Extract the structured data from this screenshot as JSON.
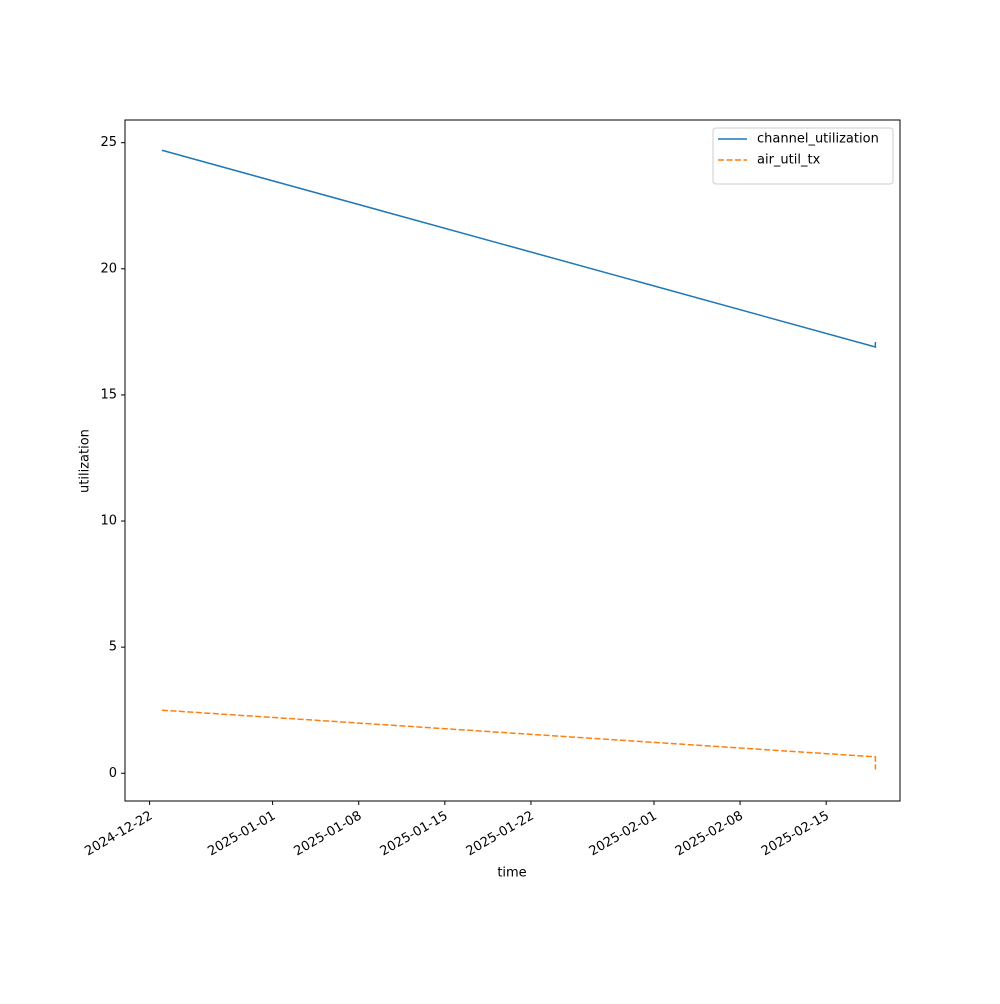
{
  "chart_data": {
    "type": "line",
    "x": [
      "2024-12-23",
      "2025-02-19",
      "2025-02-19"
    ],
    "series": [
      {
        "name": "channel_utilization",
        "color": "#1f77b4",
        "dash": "solid",
        "values": [
          24.7,
          16.9,
          17.1
        ]
      },
      {
        "name": "air_util_tx",
        "color": "#ff7f0e",
        "dash": "dashed",
        "values": [
          2.5,
          0.65,
          0.15
        ]
      }
    ],
    "x_label": "time",
    "y_label": "utilization",
    "xlim": [
      "2024-12-20",
      "2025-02-21"
    ],
    "xticks": [
      "2024-12-22",
      "2025-01-01",
      "2025-01-08",
      "2025-01-15",
      "2025-01-22",
      "2025-02-01",
      "2025-02-08",
      "2025-02-15"
    ],
    "ylim": [
      -1.1,
      25.9
    ],
    "yticks": [
      0,
      5,
      10,
      15,
      20,
      25
    ],
    "grid": false,
    "legend": "upper right"
  }
}
